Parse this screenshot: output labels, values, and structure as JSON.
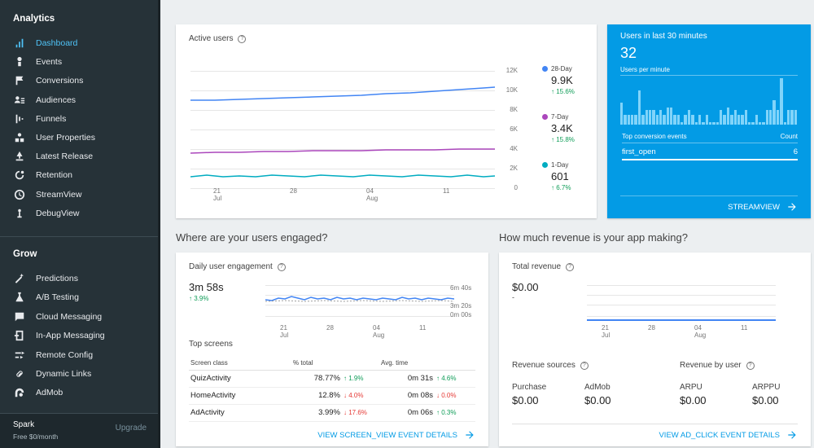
{
  "sidebar": {
    "analytics_title": "Analytics",
    "analytics_items": [
      {
        "label": "Dashboard",
        "icon": "bar-chart-icon",
        "active": true
      },
      {
        "label": "Events",
        "icon": "touch-icon"
      },
      {
        "label": "Conversions",
        "icon": "flag-icon"
      },
      {
        "label": "Audiences",
        "icon": "people-icon"
      },
      {
        "label": "Funnels",
        "icon": "funnel-icon"
      },
      {
        "label": "User Properties",
        "icon": "properties-icon"
      },
      {
        "label": "Latest Release",
        "icon": "release-icon"
      },
      {
        "label": "Retention",
        "icon": "retention-icon"
      },
      {
        "label": "StreamView",
        "icon": "clock-icon"
      },
      {
        "label": "DebugView",
        "icon": "debug-icon"
      }
    ],
    "grow_title": "Grow",
    "grow_items": [
      {
        "label": "Predictions",
        "icon": "magic-wand-icon"
      },
      {
        "label": "A/B Testing",
        "icon": "flask-icon"
      },
      {
        "label": "Cloud Messaging",
        "icon": "message-icon"
      },
      {
        "label": "In-App Messaging",
        "icon": "in-app-icon"
      },
      {
        "label": "Remote Config",
        "icon": "remote-config-icon"
      },
      {
        "label": "Dynamic Links",
        "icon": "link-icon"
      },
      {
        "label": "AdMob",
        "icon": "admob-icon"
      }
    ],
    "plan": {
      "name": "Spark",
      "price": "Free $0/month",
      "upgrade": "Upgrade"
    }
  },
  "active_users": {
    "title": "Active users",
    "y_ticks": [
      "12K",
      "10K",
      "8K",
      "6K",
      "4K",
      "2K",
      "0"
    ],
    "x_ticks": [
      {
        "d": "21",
        "m": "Jul"
      },
      {
        "d": "28",
        "m": ""
      },
      {
        "d": "04",
        "m": "Aug"
      },
      {
        "d": "11",
        "m": ""
      }
    ],
    "legend": [
      {
        "label": "28-Day",
        "value": "9.9K",
        "change": "↑ 15.6%",
        "color": "#4285f4"
      },
      {
        "label": "7-Day",
        "value": "3.4K",
        "change": "↑ 15.8%",
        "color": "#ab47bc"
      },
      {
        "label": "1-Day",
        "value": "601",
        "change": "↑ 6.7%",
        "color": "#00acc1"
      }
    ]
  },
  "realtime": {
    "title": "Users in last 30 minutes",
    "count": "32",
    "per_minute_label": "Users per minute",
    "bars": [
      0.45,
      0.2,
      0.2,
      0.2,
      0.2,
      0.7,
      0.2,
      0.3,
      0.3,
      0.3,
      0.2,
      0.3,
      0.2,
      0.35,
      0.35,
      0.2,
      0.2,
      0.05,
      0.2,
      0.3,
      0.2,
      0.05,
      0.2,
      0.05,
      0.2,
      0.05,
      0.05,
      0.05,
      0.3,
      0.2,
      0.35,
      0.2,
      0.3,
      0.2,
      0.2,
      0.3,
      0.05,
      0.05,
      0.2,
      0.05,
      0.05,
      0.3,
      0.3,
      0.5,
      0.3,
      0.95,
      0.05,
      0.3,
      0.3,
      0.3
    ],
    "events_header": "Top conversion events",
    "count_header": "Count",
    "event_name": "first_open",
    "event_count": "6",
    "link": "STREAMVIEW"
  },
  "engaged_header": "Where are your users engaged?",
  "revenue_header": "How much revenue is your app making?",
  "engagement": {
    "title": "Daily user engagement",
    "value": "3m 58s",
    "change": "↑ 3.9%",
    "y_ticks": [
      "6m 40s",
      "3m 20s",
      "0m 00s"
    ],
    "x_ticks": [
      {
        "d": "21",
        "m": "Jul"
      },
      {
        "d": "28",
        "m": ""
      },
      {
        "d": "04",
        "m": "Aug"
      },
      {
        "d": "11",
        "m": ""
      }
    ],
    "top_screens_label": "Top screens",
    "columns": [
      "Screen class",
      "% total",
      "Avg. time"
    ],
    "rows": [
      {
        "name": "QuizActivity",
        "pct": "78.77%",
        "pct_chg": "↑ 1.9%",
        "pct_dir": "up",
        "time": "0m 31s",
        "time_chg": "↑ 4.6%",
        "time_dir": "up"
      },
      {
        "name": "HomeActivity",
        "pct": "12.8%",
        "pct_chg": "↓ 4.0%",
        "pct_dir": "down",
        "time": "0m 08s",
        "time_chg": "↓ 0.0%",
        "time_dir": "down"
      },
      {
        "name": "AdActivity",
        "pct": "3.99%",
        "pct_chg": "↓ 17.6%",
        "pct_dir": "down",
        "time": "0m 06s",
        "time_chg": "↑ 0.3%",
        "time_dir": "up"
      }
    ],
    "link": "VIEW SCREEN_VIEW EVENT DETAILS"
  },
  "revenue": {
    "title": "Total revenue",
    "value": "$0.00",
    "change": "-",
    "x_ticks": [
      {
        "d": "21",
        "m": "Jul"
      },
      {
        "d": "28",
        "m": ""
      },
      {
        "d": "04",
        "m": "Aug"
      },
      {
        "d": "11",
        "m": ""
      }
    ],
    "sources_label": "Revenue sources",
    "by_user_label": "Revenue by user",
    "purchase_label": "Purchase",
    "purchase_value": "$0.00",
    "admob_label": "AdMob",
    "admob_value": "$0.00",
    "arpu_label": "ARPU",
    "arpu_value": "$0.00",
    "arppu_label": "ARPPU",
    "arppu_value": "$0.00",
    "link": "VIEW AD_CLICK EVENT DETAILS"
  }
}
